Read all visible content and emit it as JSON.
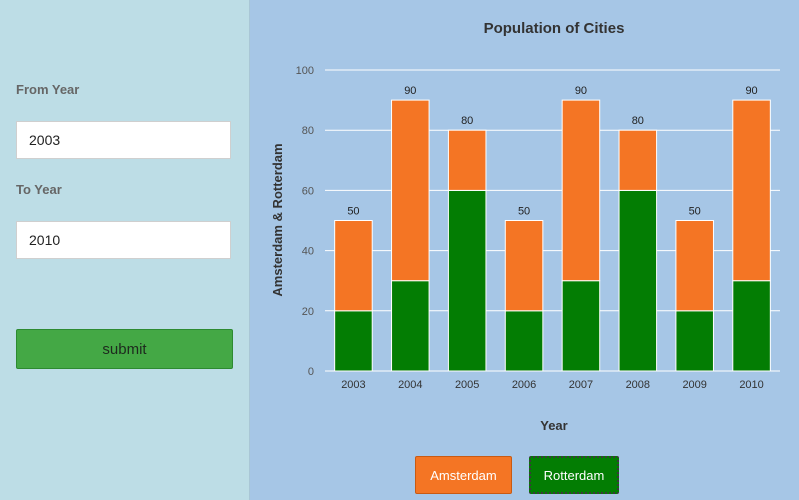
{
  "form": {
    "from_label": "From Year",
    "from_value": "2003",
    "to_label": "To Year",
    "to_value": "2010",
    "submit_label": "submit"
  },
  "colors": {
    "amsterdam": "#f47524",
    "rotterdam": "#037d03",
    "sidebar_bg": "#bddde6",
    "chart_bg": "#a6c6e6"
  },
  "legend": {
    "amsterdam": "Amsterdam",
    "rotterdam": "Rotterdam"
  },
  "chart_data": {
    "type": "bar",
    "stacked": true,
    "title": "Population of Cities",
    "xlabel": "Year",
    "ylabel": "Amsterdam & Rotterdam",
    "ylim": [
      0,
      100
    ],
    "yticks": [
      0,
      20,
      40,
      60,
      80,
      100
    ],
    "grid": true,
    "legend_position": "bottom",
    "categories": [
      "2003",
      "2004",
      "2005",
      "2006",
      "2007",
      "2008",
      "2009",
      "2010"
    ],
    "series": [
      {
        "name": "Rotterdam",
        "values": [
          20,
          30,
          60,
          20,
          30,
          60,
          20,
          30
        ]
      },
      {
        "name": "Amsterdam",
        "values": [
          30,
          60,
          20,
          30,
          60,
          20,
          30,
          60
        ]
      }
    ],
    "totals": [
      50,
      90,
      80,
      50,
      90,
      80,
      50,
      90
    ]
  }
}
